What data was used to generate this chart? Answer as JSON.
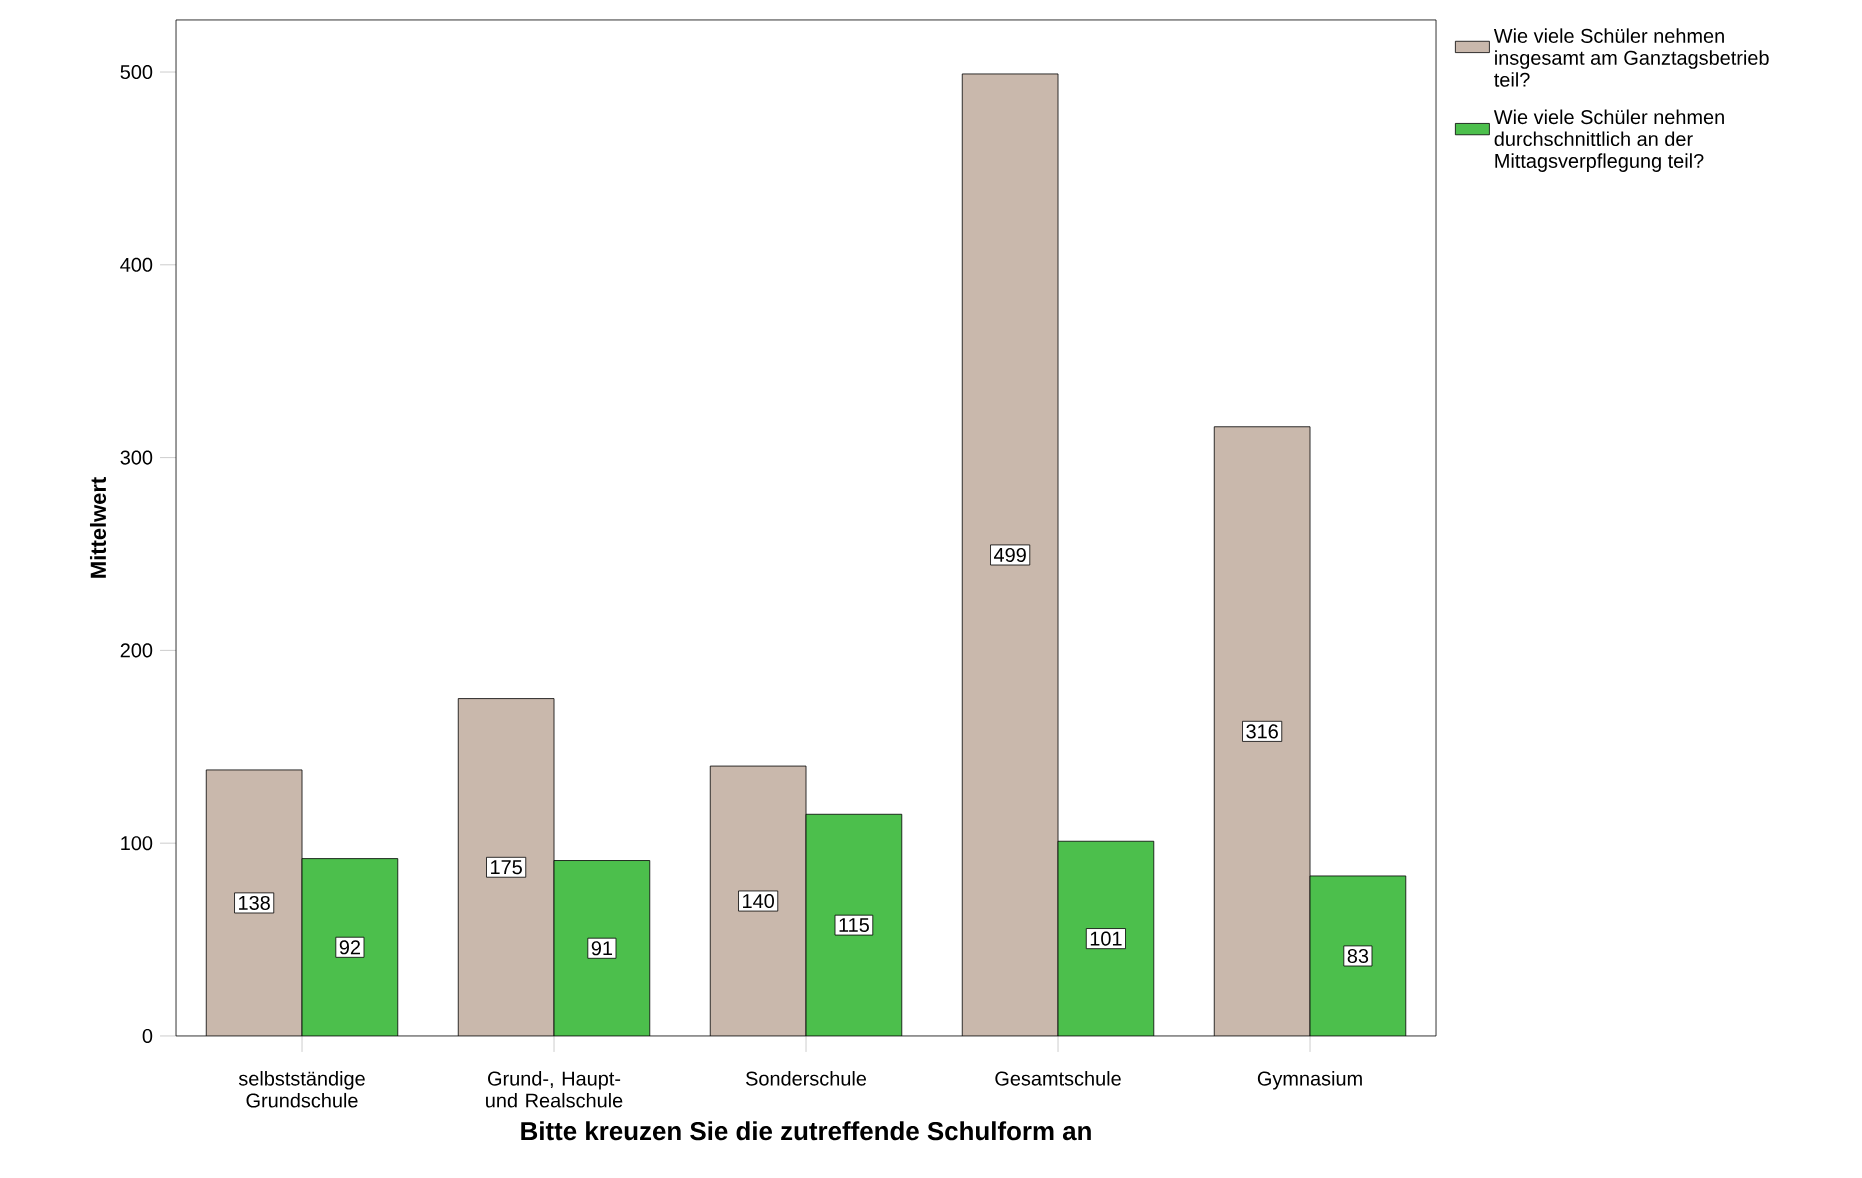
{
  "chart_data": {
    "type": "bar",
    "xlabel": "Bitte kreuzen Sie die zutreffende Schulform an",
    "ylabel": "Mittelwert",
    "categories": [
      "selbstständige Grundschule",
      "Grund-, Haupt- und Realschule",
      "Sonderschule",
      "Gesamtschule",
      "Gymnasium"
    ],
    "series": [
      {
        "name": "Wie viele Schüler nehmen insgesamt am Ganztagsbetrieb teil?",
        "color": "#c9b8ac",
        "values": [
          138,
          175,
          140,
          499,
          316
        ]
      },
      {
        "name": "Wie viele Schüler nehmen durchschnittlich an der Mittagsverpflegung teil?",
        "color": "#4cbf4c",
        "values": [
          92,
          91,
          115,
          101,
          83
        ]
      }
    ],
    "ylim": [
      0,
      527
    ],
    "yticks": [
      0,
      100,
      200,
      300,
      400,
      500
    ],
    "grid": false,
    "legend": "top right",
    "data_labels": true
  }
}
